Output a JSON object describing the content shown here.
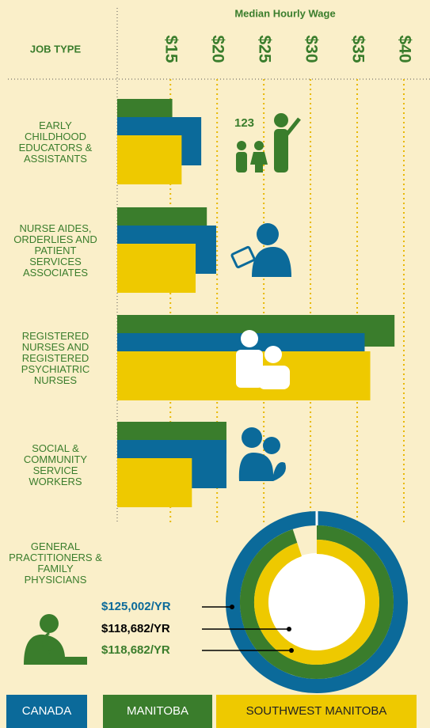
{
  "chart_data": [
    {
      "type": "bar",
      "title": "Median Hourly Wage",
      "ylabel": "JOB TYPE",
      "categories": [
        "EARLY CHILDHOOD EDUCATORS & ASSISTANTS",
        "NURSE AIDES, ORDERLIES AND PATIENT SERVICES ASSOCIATES",
        "REGISTERED NURSES AND REGISTERED PSYCHIATRIC NURSES",
        "SOCIAL & COMMUNITY SERVICE WORKERS"
      ],
      "series": [
        {
          "name": "MANITOBA",
          "color": "#3a7d2c",
          "values": [
            15.2,
            18.9,
            39.0,
            21.0
          ]
        },
        {
          "name": "CANADA",
          "color": "#0b6a9a",
          "values": [
            18.3,
            19.9,
            35.8,
            21.0
          ]
        },
        {
          "name": "SOUTHWEST MANITOBA",
          "color": "#eec900",
          "values": [
            16.2,
            17.7,
            36.4,
            17.3
          ]
        }
      ],
      "xlim": [
        9.3,
        42.8
      ],
      "xticks": [
        {
          "value": 15,
          "label": "$15"
        },
        {
          "value": 20,
          "label": "$20"
        },
        {
          "value": 25,
          "label": "$25"
        },
        {
          "value": 30,
          "label": "$30"
        },
        {
          "value": 35,
          "label": "$35"
        },
        {
          "value": 40,
          "label": "$40"
        }
      ],
      "grid": true
    },
    {
      "type": "donut",
      "categories": [
        "GENERAL PRACTITIONERS & FAMILY PHYSICIANS"
      ],
      "series": [
        {
          "name": "CANADA",
          "color": "#0b6a9a",
          "values": [
            125002
          ],
          "value_labels": [
            "$125,002/YR"
          ],
          "label_color": "#0b6a9a"
        },
        {
          "name": "SOUTHWEST MANITOBA",
          "color": "#eec900",
          "values": [
            118682
          ],
          "value_labels": [
            "$118,682/YR"
          ],
          "label_color": "#000000"
        },
        {
          "name": "MANITOBA",
          "color": "#3a7d2c",
          "values": [
            118682
          ],
          "value_labels": [
            "$118,682/YR"
          ],
          "label_color": "#3a7d2c"
        }
      ]
    }
  ]
}
